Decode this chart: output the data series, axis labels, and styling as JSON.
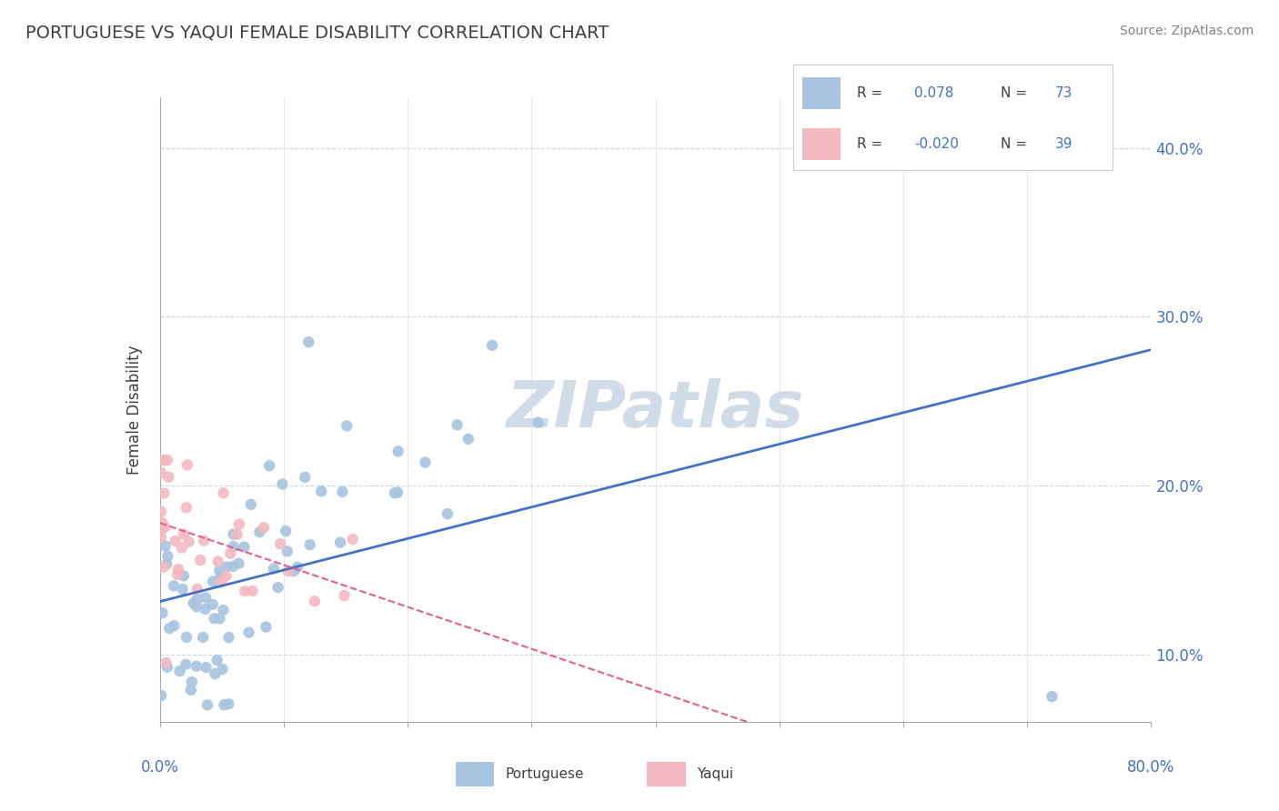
{
  "title": "PORTUGUESE VS YAQUI FEMALE DISABILITY CORRELATION CHART",
  "source_text": "Source: ZipAtlas.com",
  "ylabel": "Female Disability",
  "xlim": [
    0.0,
    0.8
  ],
  "ylim": [
    0.06,
    0.43
  ],
  "yticks": [
    0.1,
    0.2,
    0.3,
    0.4
  ],
  "ytick_labels": [
    "10.0%",
    "20.0%",
    "30.0%",
    "40.0%"
  ],
  "portuguese_R": 0.078,
  "portuguese_N": 73,
  "yaqui_R": -0.02,
  "yaqui_N": 39,
  "portuguese_color": "#a8c4e0",
  "portuguese_line_color": "#4472c4",
  "yaqui_color": "#f4b8c1",
  "yaqui_line_color": "#e06090",
  "watermark_text": "ZIPatlas",
  "watermark_color": "#d0dce8",
  "background_color": "#ffffff",
  "grid_color": "#c8d8e8",
  "title_color": "#404040",
  "axis_label_color": "#4472c4"
}
